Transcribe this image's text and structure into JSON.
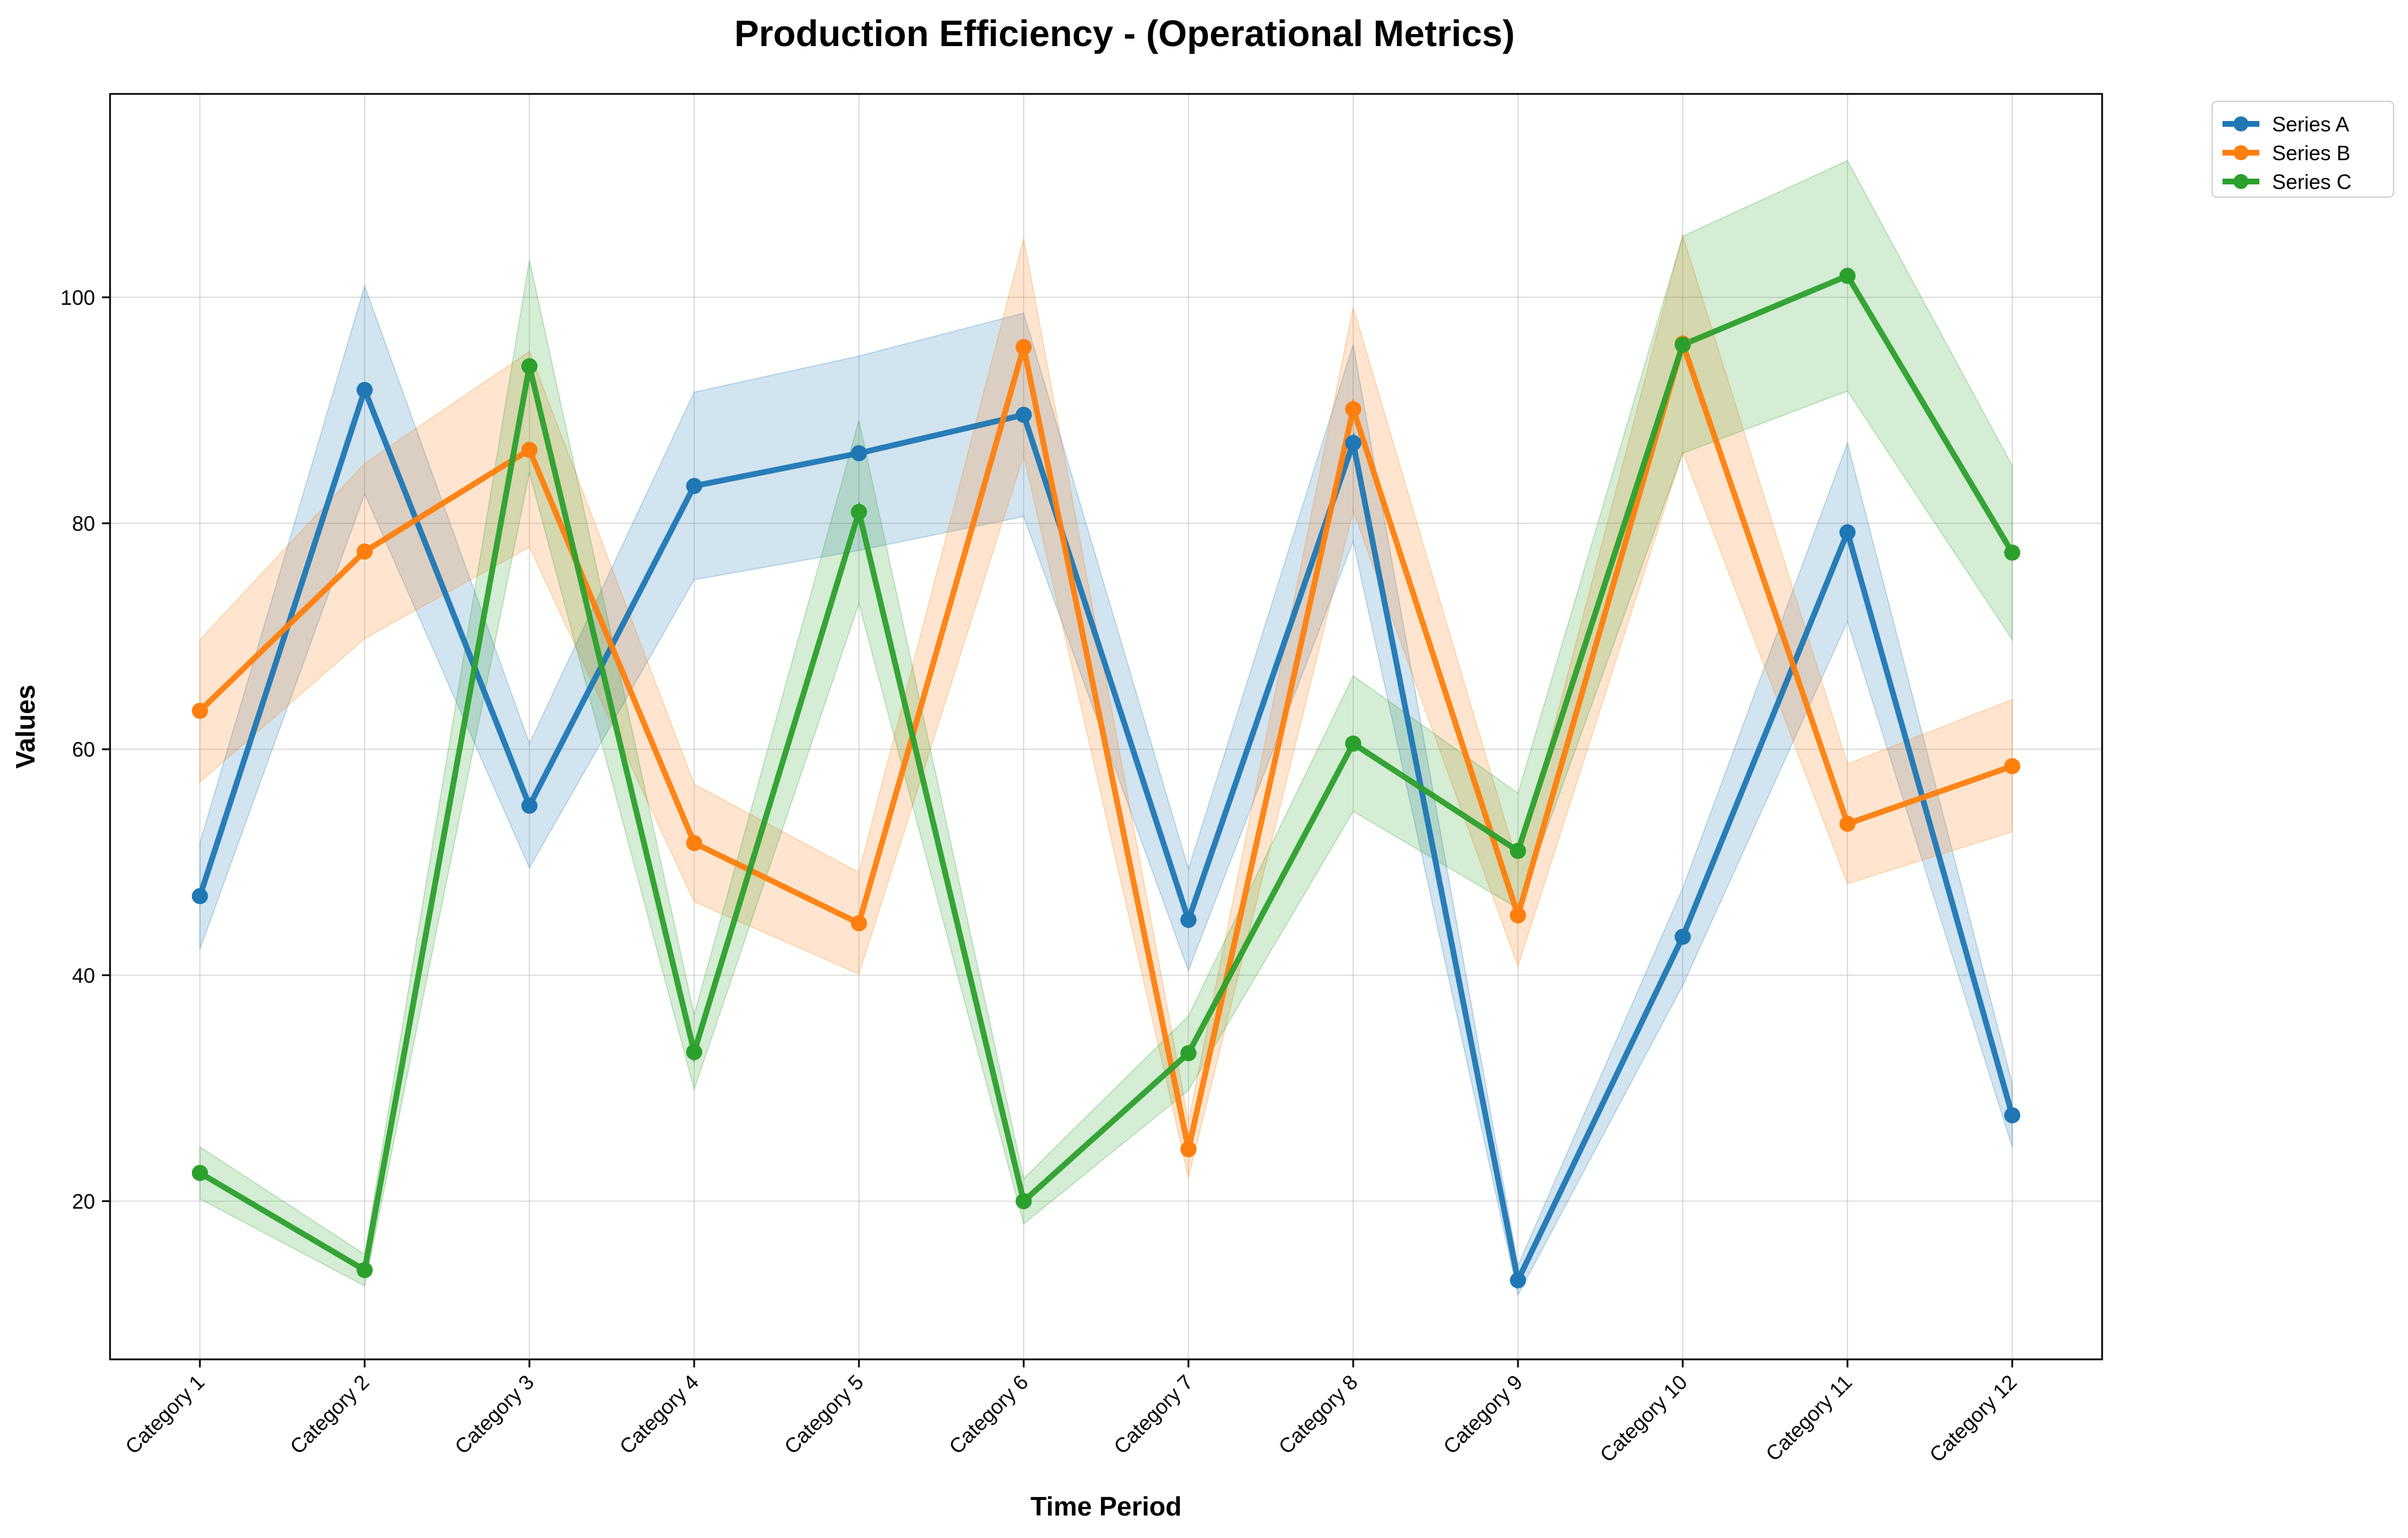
{
  "chart_data": {
    "type": "line",
    "title": "Production Efficiency - (Operational Metrics)",
    "xlabel": "Time Period",
    "ylabel": "Values",
    "categories": [
      "Category 1",
      "Category 2",
      "Category 3",
      "Category 4",
      "Category 5",
      "Category 6",
      "Category 7",
      "Category 8",
      "Category 9",
      "Category 10",
      "Category 11",
      "Category 12"
    ],
    "ylim": [
      6,
      118
    ],
    "yticks": [
      20,
      40,
      60,
      80,
      100
    ],
    "grid": true,
    "legend_position": "outside-top-right",
    "series": [
      {
        "name": "Series A",
        "color": "#1f77b4",
        "values": [
          47.0,
          91.8,
          55.0,
          83.3,
          86.2,
          89.6,
          44.9,
          87.1,
          13.0,
          43.4,
          79.2,
          27.6
        ],
        "lower": [
          42.3,
          82.6,
          49.5,
          75.0,
          77.6,
          80.6,
          40.4,
          78.4,
          11.7,
          39.1,
          71.3,
          24.8
        ],
        "upper": [
          51.7,
          101.0,
          60.5,
          91.6,
          94.8,
          98.6,
          49.4,
          95.8,
          14.3,
          47.7,
          87.1,
          30.4
        ]
      },
      {
        "name": "Series B",
        "color": "#ff7f0e",
        "values": [
          63.4,
          77.5,
          86.5,
          51.7,
          44.6,
          95.6,
          24.6,
          90.1,
          45.3,
          95.9,
          53.4,
          58.5
        ],
        "lower": [
          57.1,
          69.8,
          77.9,
          46.5,
          40.1,
          86.0,
          22.1,
          81.1,
          40.8,
          86.3,
          48.1,
          52.7
        ],
        "upper": [
          69.7,
          85.3,
          95.2,
          56.9,
          49.1,
          105.2,
          27.1,
          99.1,
          49.8,
          105.5,
          58.7,
          64.4
        ]
      },
      {
        "name": "Series C",
        "color": "#2ca02c",
        "values": [
          22.5,
          13.9,
          93.9,
          33.2,
          81.0,
          20.0,
          33.1,
          60.5,
          51.0,
          95.8,
          101.9,
          77.4
        ],
        "lower": [
          20.2,
          12.5,
          84.5,
          29.9,
          72.9,
          18.0,
          29.8,
          54.5,
          45.9,
          86.2,
          91.7,
          69.7
        ],
        "upper": [
          24.8,
          15.3,
          103.3,
          36.5,
          89.1,
          22.0,
          36.4,
          66.5,
          56.1,
          105.4,
          112.1,
          85.1
        ]
      }
    ]
  }
}
